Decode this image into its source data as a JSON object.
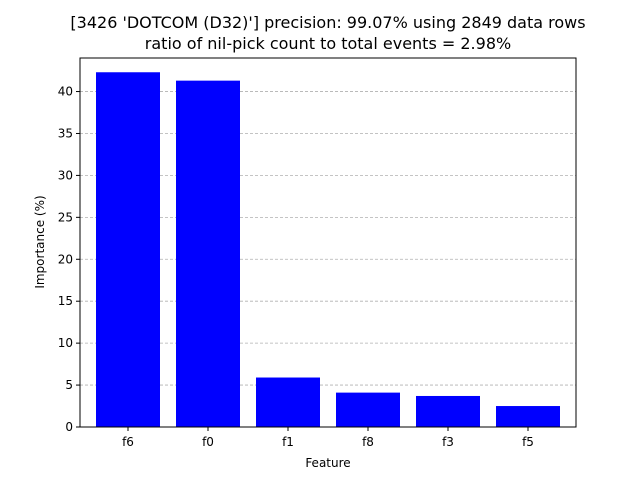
{
  "chart_data": {
    "type": "bar",
    "title": "[3426 'DOTCOM (D32)'] precision: 99.07% using 2849 data rows",
    "subtitle": "ratio of nil-pick count to total events = 2.98%",
    "xlabel": "Feature",
    "ylabel": "Importance (%)",
    "categories": [
      "f6",
      "f0",
      "f1",
      "f8",
      "f3",
      "f5"
    ],
    "values": [
      42.3,
      41.3,
      5.9,
      4.1,
      3.7,
      2.5
    ],
    "ylim": [
      0,
      44
    ],
    "yticks": [
      0,
      5,
      10,
      15,
      20,
      25,
      30,
      35,
      40
    ],
    "grid": "y-dashed",
    "bar_color": "#0000ff"
  }
}
